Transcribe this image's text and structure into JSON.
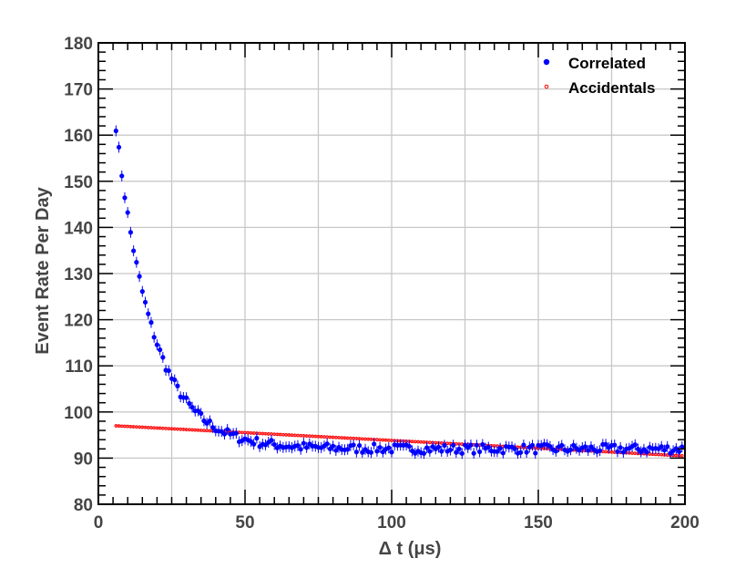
{
  "chart_data": {
    "type": "scatter",
    "xlabel": "Δ t (μs)",
    "ylabel": "Event Rate Per Day",
    "xlim": [
      0,
      200
    ],
    "ylim": [
      80,
      180
    ],
    "xticks": [
      0,
      50,
      100,
      150,
      200
    ],
    "yticks": [
      80,
      90,
      100,
      110,
      120,
      130,
      140,
      150,
      160,
      170,
      180
    ],
    "grid": true,
    "legend_position": "top-right",
    "series": [
      {
        "name": "Correlated",
        "color": "#0000ff",
        "marker": "filled-circle",
        "error_bars": true,
        "model": {
          "form": "a + b*exp(-x/tau)",
          "a": 92.0,
          "b": 113.0,
          "tau": 12.5,
          "x_start": 6,
          "x_end": 199,
          "x_step": 1,
          "noise": 1.0
        }
      },
      {
        "name": "Accidentals",
        "color": "#ff0000",
        "marker": "small-open-circle",
        "error_bars": true,
        "model": {
          "form": "linear",
          "x_start": 6,
          "x_end": 199,
          "x_step": 1,
          "y_at_start": 97.0,
          "y_at_end": 90.5
        }
      }
    ]
  }
}
